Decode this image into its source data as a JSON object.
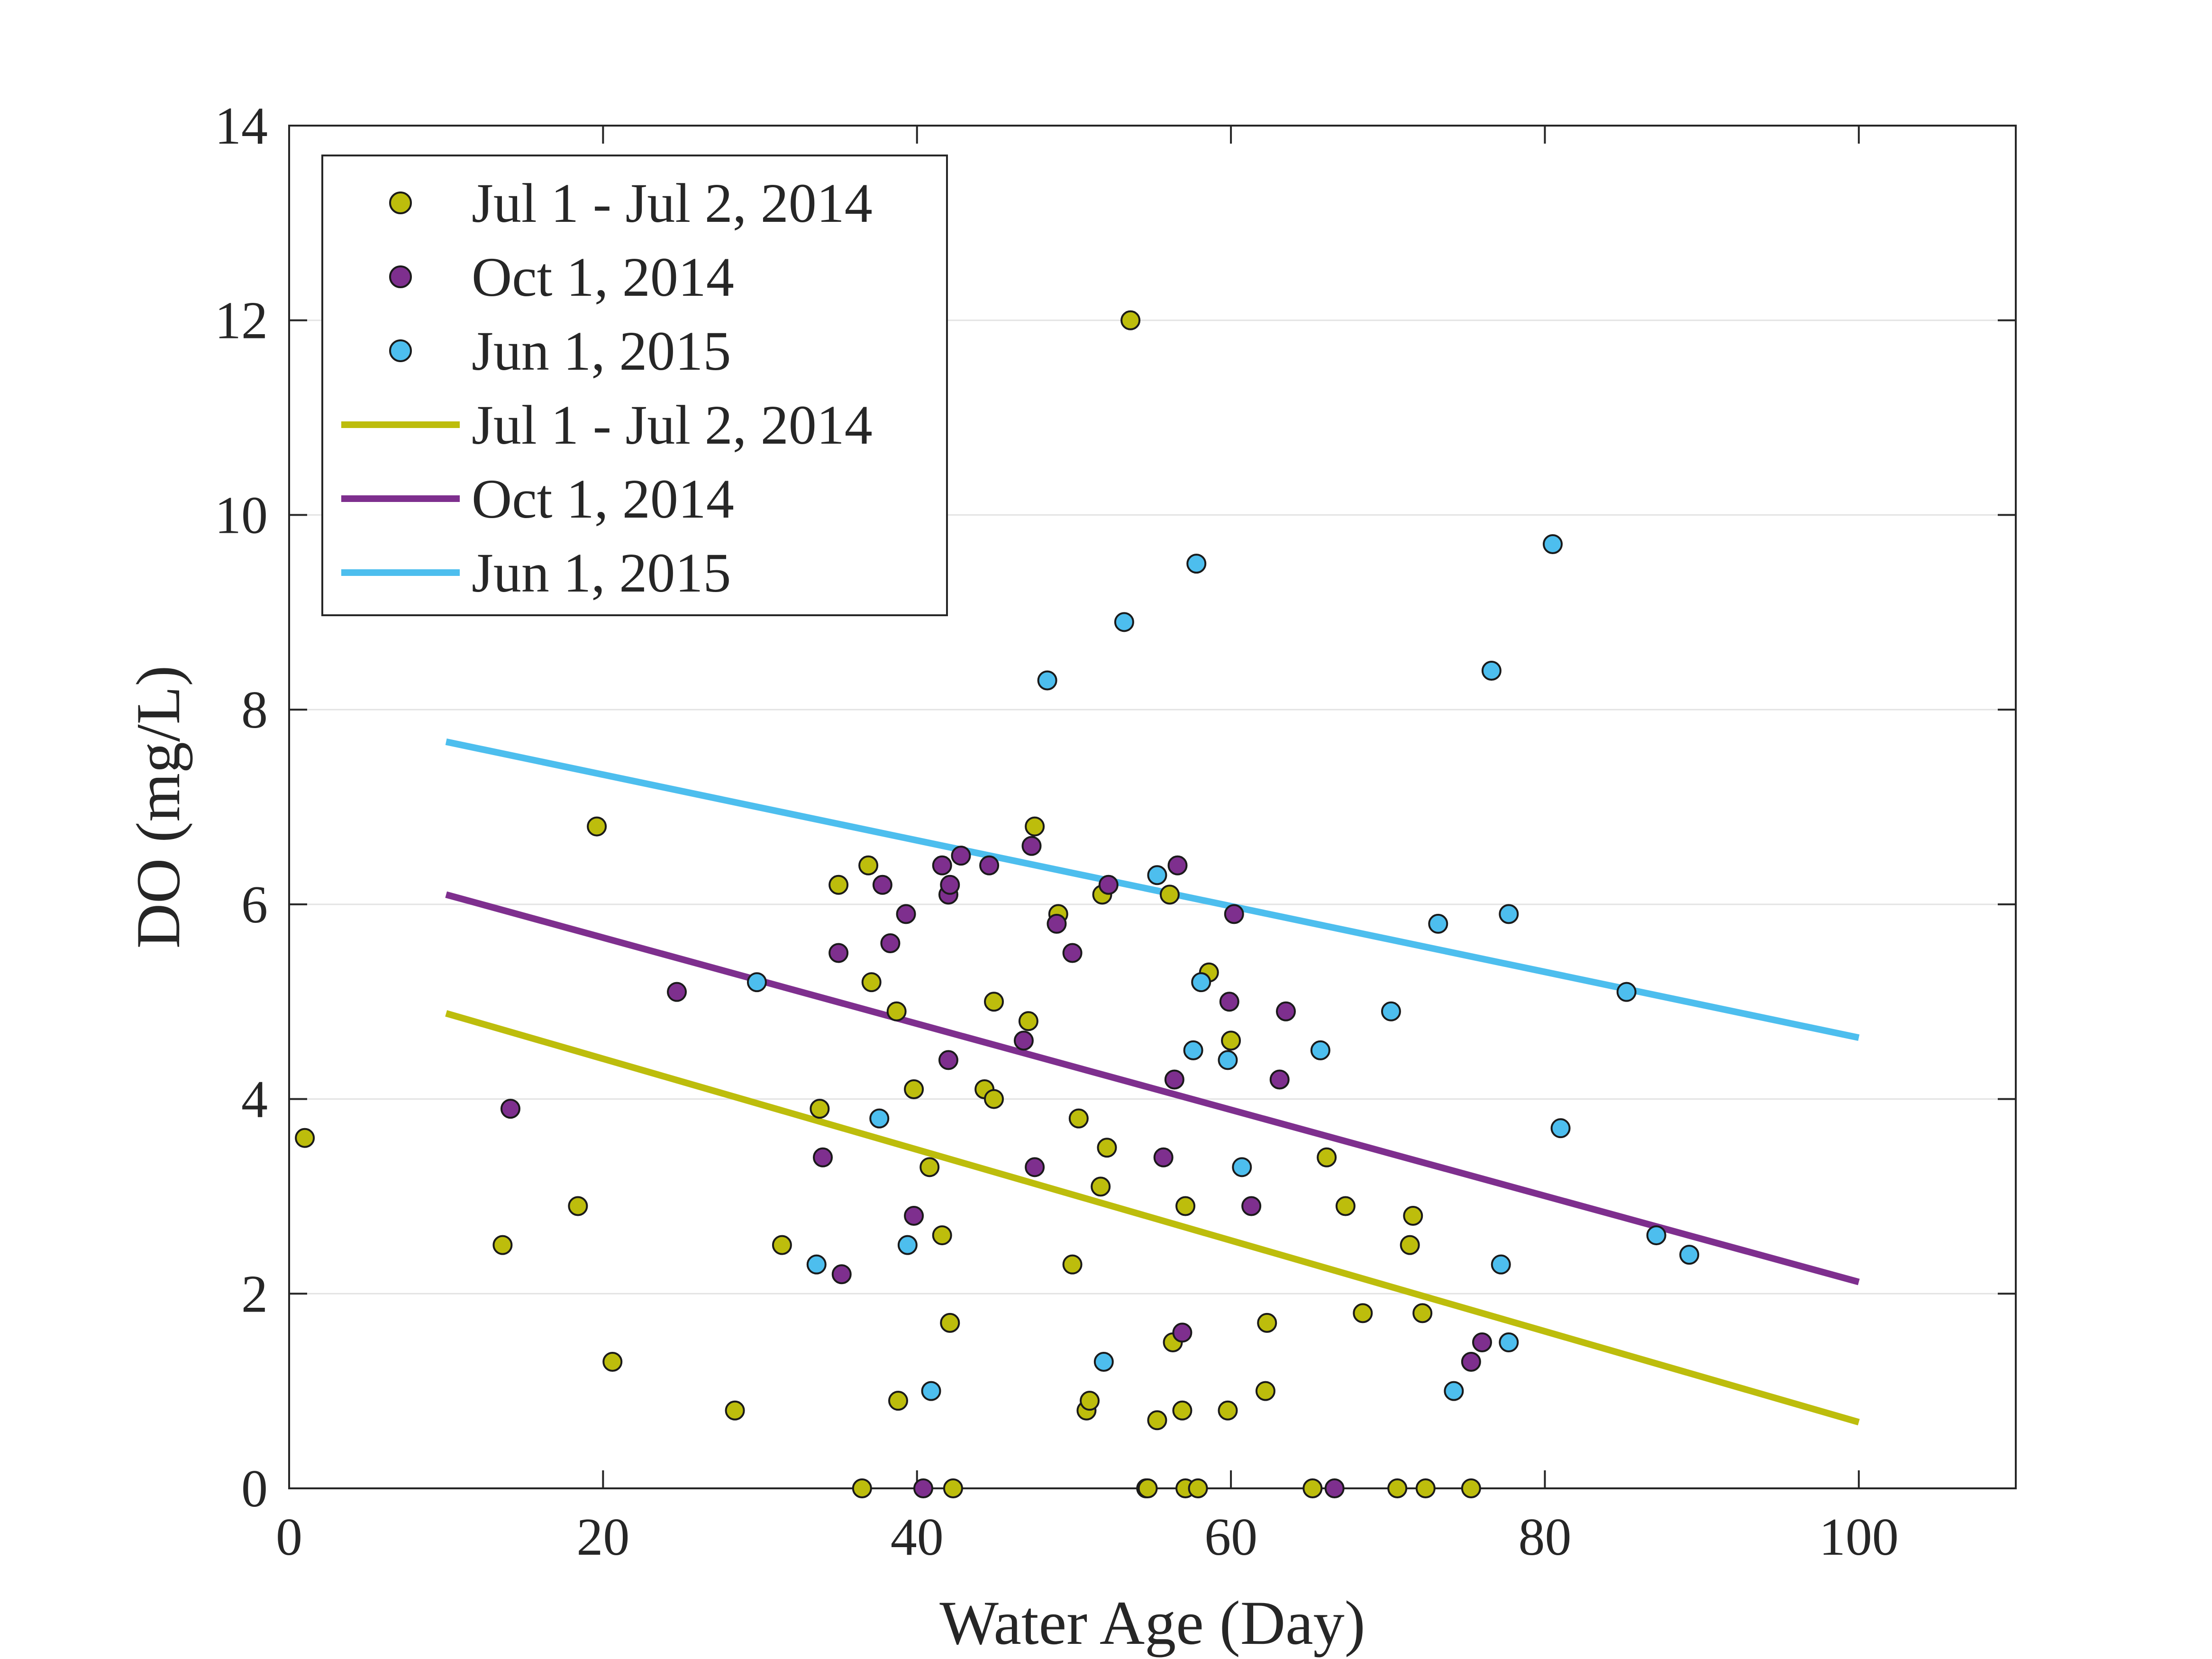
{
  "chart_data": {
    "type": "scatter",
    "title": "",
    "xlabel": "Water Age (Day)",
    "ylabel": "DO (mg/L)",
    "xlim": [
      0,
      110
    ],
    "ylim": [
      0,
      14
    ],
    "xticks": [
      0,
      20,
      40,
      60,
      80,
      100
    ],
    "yticks": [
      0,
      2,
      4,
      6,
      8,
      10,
      12,
      14
    ],
    "grid": "horizontal",
    "legend_position": "top-left",
    "series": [
      {
        "name": "Jul 1 - Jul 2, 2014",
        "kind": "scatter",
        "color": "#BDBD0C",
        "points": [
          [
            1,
            3.6
          ],
          [
            13.6,
            2.5
          ],
          [
            18.4,
            2.9
          ],
          [
            19.6,
            6.8
          ],
          [
            20.6,
            1.3
          ],
          [
            28.4,
            0.8
          ],
          [
            31.4,
            2.5
          ],
          [
            33.8,
            3.9
          ],
          [
            35,
            6.2
          ],
          [
            36.5,
            0
          ],
          [
            36.9,
            6.4
          ],
          [
            37.1,
            5.2
          ],
          [
            38.7,
            4.9
          ],
          [
            38.8,
            0.9
          ],
          [
            39.8,
            4.1
          ],
          [
            40.8,
            3.3
          ],
          [
            41.6,
            2.6
          ],
          [
            42.1,
            1.7
          ],
          [
            42.3,
            0
          ],
          [
            44.3,
            4.1
          ],
          [
            44.9,
            4.0
          ],
          [
            44.9,
            5.0
          ],
          [
            47.1,
            4.8
          ],
          [
            47.5,
            6.8
          ],
          [
            49.0,
            5.9
          ],
          [
            49.9,
            2.3
          ],
          [
            50.3,
            3.8
          ],
          [
            50.8,
            0.8
          ],
          [
            51.0,
            0.9
          ],
          [
            51.7,
            3.1
          ],
          [
            51.8,
            6.1
          ],
          [
            52.1,
            3.5
          ],
          [
            54.6,
            0
          ],
          [
            54.7,
            0
          ],
          [
            53.6,
            12.0
          ],
          [
            55.3,
            0.7
          ],
          [
            56.3,
            1.5
          ],
          [
            56.1,
            6.1
          ],
          [
            56.9,
            0.8
          ],
          [
            57.1,
            2.9
          ],
          [
            57.1,
            0
          ],
          [
            57.9,
            0
          ],
          [
            58.6,
            5.3
          ],
          [
            59.8,
            0.8
          ],
          [
            60.0,
            4.6
          ],
          [
            62.2,
            1.0
          ],
          [
            62.3,
            1.7
          ],
          [
            65.2,
            0
          ],
          [
            66.1,
            3.4
          ],
          [
            67.3,
            2.9
          ],
          [
            68.4,
            1.8
          ],
          [
            70.6,
            0
          ],
          [
            71.4,
            2.5
          ],
          [
            71.6,
            2.8
          ],
          [
            72.2,
            1.8
          ],
          [
            72.4,
            0
          ],
          [
            75.3,
            0
          ]
        ]
      },
      {
        "name": "Oct 1, 2014",
        "kind": "scatter",
        "color": "#7E2F8E",
        "points": [
          [
            14.1,
            3.9
          ],
          [
            24.7,
            5.1
          ],
          [
            34.0,
            3.4
          ],
          [
            35.0,
            5.5
          ],
          [
            35.2,
            2.2
          ],
          [
            37.8,
            6.2
          ],
          [
            38.3,
            5.6
          ],
          [
            39.3,
            5.9
          ],
          [
            39.8,
            2.8
          ],
          [
            40.4,
            0
          ],
          [
            41.6,
            6.4
          ],
          [
            42.0,
            4.4
          ],
          [
            42.0,
            6.1
          ],
          [
            42.1,
            6.2
          ],
          [
            42.8,
            6.5
          ],
          [
            44.6,
            6.4
          ],
          [
            46.8,
            4.6
          ],
          [
            47.3,
            6.6
          ],
          [
            47.5,
            3.3
          ],
          [
            48.9,
            5.8
          ],
          [
            49.9,
            5.5
          ],
          [
            52.2,
            6.2
          ],
          [
            55.7,
            3.4
          ],
          [
            56.4,
            4.2
          ],
          [
            56.6,
            6.4
          ],
          [
            56.9,
            1.6
          ],
          [
            59.9,
            5.0
          ],
          [
            60.2,
            5.9
          ],
          [
            61.3,
            2.9
          ],
          [
            63.1,
            4.2
          ],
          [
            63.5,
            4.9
          ],
          [
            66.6,
            0
          ],
          [
            75.3,
            1.3
          ],
          [
            76.0,
            1.5
          ]
        ]
      },
      {
        "name": "Jun 1, 2015",
        "kind": "scatter",
        "color": "#4DBEEE",
        "points": [
          [
            29.8,
            5.2
          ],
          [
            33.6,
            2.3
          ],
          [
            37.6,
            3.8
          ],
          [
            39.4,
            2.5
          ],
          [
            40.9,
            1.0
          ],
          [
            48.3,
            8.3
          ],
          [
            51.9,
            1.3
          ],
          [
            53.2,
            8.9
          ],
          [
            55.3,
            6.3
          ],
          [
            57.6,
            4.5
          ],
          [
            57.8,
            9.5
          ],
          [
            58.1,
            5.2
          ],
          [
            59.8,
            4.4
          ],
          [
            60.7,
            3.3
          ],
          [
            65.7,
            4.5
          ],
          [
            70.2,
            4.9
          ],
          [
            73.2,
            5.8
          ],
          [
            74.2,
            1.0
          ],
          [
            76.6,
            8.4
          ],
          [
            77.2,
            2.3
          ],
          [
            77.7,
            1.5
          ],
          [
            77.7,
            5.9
          ],
          [
            80.5,
            9.7
          ],
          [
            81.0,
            3.7
          ],
          [
            85.2,
            5.1
          ],
          [
            87.1,
            2.6
          ],
          [
            89.2,
            2.4
          ]
        ]
      },
      {
        "name": "Jul 1 - Jul 2, 2014",
        "kind": "line",
        "color": "#BDBD0C",
        "x": [
          10,
          100
        ],
        "y": [
          4.88,
          0.68
        ]
      },
      {
        "name": "Oct 1, 2014",
        "kind": "line",
        "color": "#7E2F8E",
        "x": [
          10,
          100
        ],
        "y": [
          6.1,
          2.12
        ]
      },
      {
        "name": "Jun 1, 2015",
        "kind": "line",
        "color": "#4DBEEE",
        "x": [
          10,
          100
        ],
        "y": [
          7.67,
          4.63
        ]
      }
    ]
  }
}
